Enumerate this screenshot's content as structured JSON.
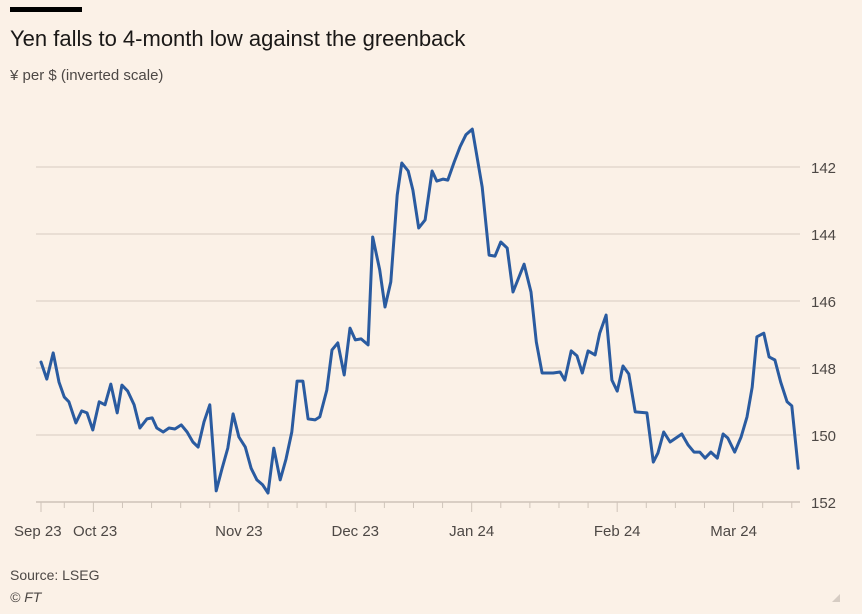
{
  "chart_data": {
    "type": "line",
    "title": "Yen falls to 4-month low against the greenback",
    "subtitle": "¥ per $ (inverted scale)",
    "xlabel": "",
    "ylabel": "¥ per $",
    "y_inverted": true,
    "ylim": [
      140.6,
      152
    ],
    "yticks": [
      142,
      144,
      146,
      148,
      150,
      152
    ],
    "xlim": [
      0,
      131
    ],
    "x_unit": "trading day index from start",
    "xticks_minor": [
      0,
      4,
      9,
      14,
      19,
      24,
      29,
      34,
      39,
      44,
      49,
      54,
      59,
      64,
      69,
      74,
      79,
      84,
      89,
      94,
      99,
      104,
      109,
      114,
      119,
      124,
      129
    ],
    "xtick_labels": [
      {
        "label": "Sep 23",
        "x": 0
      },
      {
        "label": "Oct 23",
        "x": 9.3
      },
      {
        "label": "Nov 23",
        "x": 34
      },
      {
        "label": "Dec 23",
        "x": 54
      },
      {
        "label": "Jan 24",
        "x": 74
      },
      {
        "label": "Feb 24",
        "x": 99
      },
      {
        "label": "Mar 24",
        "x": 119
      }
    ],
    "grid": true,
    "series": [
      {
        "name": "¥ per $",
        "color": "#2A5BA0",
        "x": [
          0,
          1,
          2.1,
          3.1,
          4,
          4.8,
          6,
          7,
          7.9,
          8.9,
          10,
          11,
          12,
          13.1,
          13.9,
          14.9,
          16,
          17,
          18.2,
          19.1,
          19.9,
          21,
          22,
          23,
          24.1,
          25.1,
          26.1,
          27,
          28,
          29,
          30.1,
          31.1,
          32.1,
          33,
          34,
          35.1,
          36.1,
          37.1,
          38.1,
          39,
          40,
          41.1,
          42.1,
          43.1,
          44,
          45,
          45.9,
          47.1,
          47.9,
          49.1,
          50,
          51,
          52.1,
          53.1,
          54,
          55,
          56.2,
          57,
          58.2,
          59.1,
          60.1,
          61.2,
          62,
          63.1,
          63.9,
          64.9,
          66,
          67.2,
          68,
          69.1,
          69.9,
          71,
          72,
          73,
          74.1,
          75.8,
          77,
          78,
          79,
          80.1,
          81.1,
          83,
          84.2,
          85.1,
          86.1,
          88,
          89.2,
          90,
          91.1,
          92.1,
          93,
          94,
          95.2,
          96,
          97.1,
          98.1,
          99,
          100,
          101,
          102.1,
          104.1,
          105.2,
          106,
          107,
          108.1,
          110.1,
          111.2,
          112.2,
          113.2,
          114.1,
          115.1,
          116.2,
          117.2,
          118,
          119.2,
          120.3,
          121.3,
          122.2,
          123,
          124.2,
          125.1,
          126.1,
          127.1,
          128.2,
          129,
          130.1
        ],
        "values": [
          147.82,
          148.33,
          147.55,
          148.42,
          148.87,
          149.01,
          149.64,
          149.28,
          149.34,
          149.85,
          149.01,
          149.1,
          148.48,
          149.34,
          148.51,
          148.69,
          149.1,
          149.79,
          149.52,
          149.49,
          149.79,
          149.91,
          149.79,
          149.82,
          149.7,
          149.91,
          150.21,
          150.36,
          149.61,
          149.1,
          151.67,
          151.01,
          150.39,
          149.37,
          150.06,
          150.36,
          150.99,
          151.34,
          151.49,
          151.73,
          150.39,
          151.34,
          150.72,
          149.91,
          148.39,
          148.39,
          149.52,
          149.55,
          149.46,
          148.66,
          147.46,
          147.25,
          148.21,
          146.81,
          147.16,
          147.13,
          147.31,
          144.09,
          145.07,
          146.18,
          145.43,
          142.84,
          141.88,
          142.12,
          142.69,
          143.82,
          143.58,
          142.12,
          142.42,
          142.36,
          142.39,
          141.85,
          141.4,
          141.04,
          140.87,
          142.6,
          144.63,
          144.66,
          144.24,
          144.42,
          145.73,
          144.9,
          145.73,
          147.22,
          148.15,
          148.15,
          148.12,
          148.36,
          147.49,
          147.64,
          148.15,
          147.49,
          147.61,
          146.96,
          146.42,
          148.36,
          148.69,
          147.94,
          148.18,
          149.31,
          149.34,
          150.81,
          150.54,
          149.91,
          150.21,
          149.97,
          150.3,
          150.51,
          150.51,
          150.69,
          150.51,
          150.69,
          149.97,
          150.09,
          150.51,
          150.06,
          149.46,
          148.57,
          147.07,
          146.96,
          147.67,
          147.76,
          148.42,
          149.01,
          149.13,
          150.99
        ]
      }
    ],
    "source": "Source: LSEG",
    "copyright": "© FT"
  }
}
